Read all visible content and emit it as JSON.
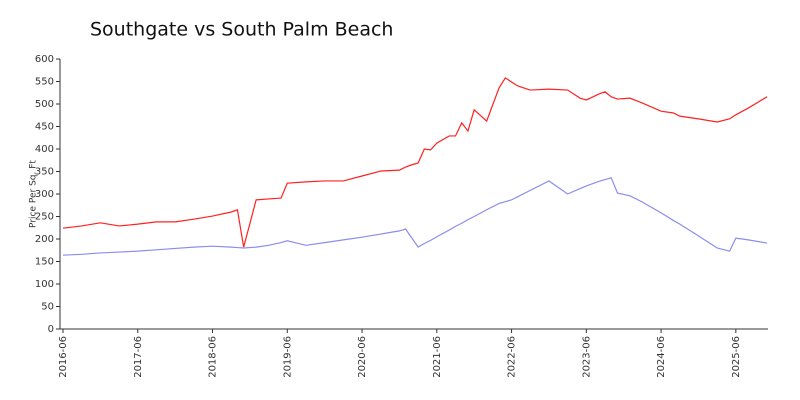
{
  "chart_data": {
    "type": "line",
    "title": "Southgate vs South Palm Beach",
    "y_label": "Price Per Sq. Ft",
    "x": [
      "2016-06",
      "2016-09",
      "2016-12",
      "2017-03",
      "2017-06",
      "2017-09",
      "2017-12",
      "2018-03",
      "2018-06",
      "2018-09",
      "2018-10",
      "2018-11",
      "2019-01",
      "2019-03",
      "2019-05",
      "2019-06",
      "2019-09",
      "2019-12",
      "2020-03",
      "2020-06",
      "2020-09",
      "2020-12",
      "2021-01",
      "2021-02",
      "2021-03",
      "2021-04",
      "2021-05",
      "2021-06",
      "2021-08",
      "2021-09",
      "2021-10",
      "2021-11",
      "2021-12",
      "2022-02",
      "2022-04",
      "2022-05",
      "2022-06",
      "2022-07",
      "2022-09",
      "2022-12",
      "2023-03",
      "2023-05",
      "2023-06",
      "2023-08",
      "2023-09",
      "2023-10",
      "2023-11",
      "2024-01",
      "2024-03",
      "2024-06",
      "2024-08",
      "2024-09",
      "2024-12",
      "2025-03",
      "2025-05",
      "2025-06",
      "2025-08",
      "2025-11"
    ],
    "series": [
      {
        "color": "#ff2020",
        "values": [
          224,
          229,
          236,
          229,
          233,
          238,
          238,
          244,
          251,
          260,
          265,
          182,
          287,
          289,
          291,
          324,
          327,
          329,
          329,
          340,
          351,
          353,
          360,
          365,
          369,
          400,
          398,
          413,
          429,
          429,
          458,
          440,
          487,
          462,
          536,
          558,
          549,
          540,
          531,
          533,
          531,
          513,
          509,
          522,
          527,
          516,
          511,
          513,
          502,
          484,
          480,
          473,
          467,
          460,
          467,
          476,
          491,
          516
        ]
      },
      {
        "color": "#8c8cee",
        "values": [
          164,
          166,
          169,
          171,
          173,
          176,
          179,
          182,
          184,
          182,
          181,
          180,
          182,
          186,
          192,
          196,
          186,
          192,
          198,
          204,
          211,
          218,
          222,
          202,
          182,
          190,
          197,
          205,
          220,
          228,
          235,
          243,
          250,
          265,
          279,
          283,
          287,
          294,
          308,
          329,
          300,
          312,
          318,
          328,
          332,
          336,
          302,
          296,
          282,
          258,
          241,
          233,
          207,
          180,
          173,
          202,
          198,
          191
        ]
      }
    ],
    "xlim": [
      "2016-06",
      "2025-11"
    ],
    "xticks": [
      "2016-06",
      "2017-06",
      "2018-06",
      "2019-06",
      "2020-06",
      "2021-06",
      "2022-06",
      "2023-06",
      "2024-06",
      "2025-06"
    ],
    "ylim": [
      0,
      600
    ],
    "yticks": [
      0,
      50,
      100,
      150,
      200,
      250,
      300,
      350,
      400,
      450,
      500,
      550,
      600
    ],
    "grid": false
  }
}
